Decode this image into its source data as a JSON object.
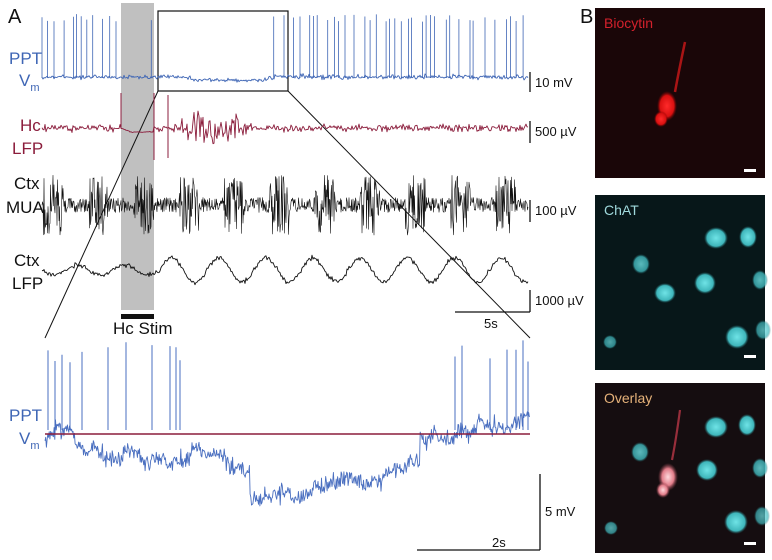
{
  "panel_a": {
    "letter": "A",
    "traces": [
      {
        "line1": "PPT",
        "line2": "V",
        "line2_sub": "m",
        "scale": "10 mV",
        "color": "#3f66b5"
      },
      {
        "line1": "Hc",
        "line2": "LFP",
        "scale": "500 µV",
        "color": "#8b1d3c"
      },
      {
        "line1": "Ctx",
        "line2": "MUA",
        "scale": "100 µV",
        "color": "#111111"
      },
      {
        "line1": "Ctx",
        "line2": "LFP",
        "scale": "1000 µV",
        "color": "#111111"
      }
    ],
    "time_scale": "5s",
    "stim_label": "Hc Stim",
    "zoom": {
      "line1": "PPT",
      "line2": "V",
      "line2_sub": "m",
      "scale_v": "5 mV",
      "time_scale": "2s",
      "trace_color": "#4a6fc0",
      "threshold_color": "#8b1d3c"
    }
  },
  "panel_b": {
    "letter": "B",
    "images": [
      {
        "label": "Biocytin",
        "label_color": "#d4212c"
      },
      {
        "label": "ChAT",
        "label_color": "#9fd9dc"
      },
      {
        "label": "Overlay",
        "label_color": "#e6b27a"
      }
    ]
  }
}
